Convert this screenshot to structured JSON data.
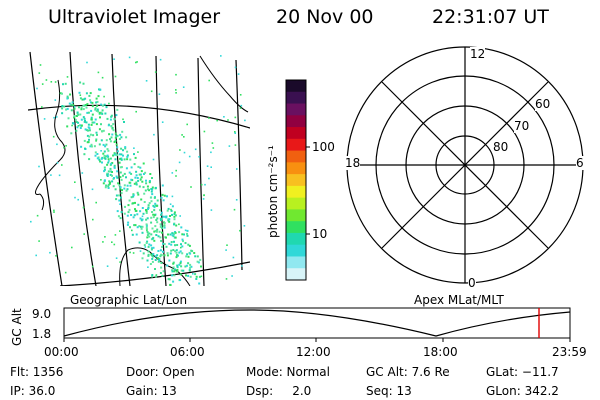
{
  "header": {
    "title": "Ultraviolet Imager",
    "date": "20 Nov 00",
    "time": "22:31:07 UT"
  },
  "colorbar": {
    "label": "photon cm⁻²s⁻¹",
    "ticks": [
      "100",
      "10"
    ],
    "colors": [
      "#1a0a2a",
      "#3a1050",
      "#6a1060",
      "#900040",
      "#c00020",
      "#e81818",
      "#f06010",
      "#f89010",
      "#f8c020",
      "#f0f020",
      "#b8f020",
      "#70e830",
      "#30e060",
      "#20d8b0",
      "#30d8d8",
      "#90e8f0",
      "#d8f4f8"
    ]
  },
  "labels": {
    "geographic": "Geographic Lat/Lon",
    "apex": "Apex MLat/MLT"
  },
  "polar": {
    "mlt_labels": {
      "top": "12",
      "left": "18",
      "right": "6",
      "bottom": "0"
    },
    "lat_labels": [
      "60",
      "70",
      "80"
    ]
  },
  "altitude_plot": {
    "ylabel": "GC Alt",
    "yticks": [
      "9.0",
      "1.8"
    ],
    "xticks": [
      "00:00",
      "06:00",
      "12:00",
      "18:00",
      "23:59"
    ],
    "marker_color": "#e00000"
  },
  "footer": {
    "flt": "Flt: 1356",
    "ip": "IP: 36.0",
    "door": "Door: Open",
    "gain": "Gain: 13",
    "mode": "Mode: Normal",
    "dsp": "Dsp:     2.0",
    "gc_alt": "GC Alt: 7.6 Re",
    "seq": "Seq: 13",
    "glat": "GLat: −11.7",
    "glon": "GLon: 342.2"
  }
}
